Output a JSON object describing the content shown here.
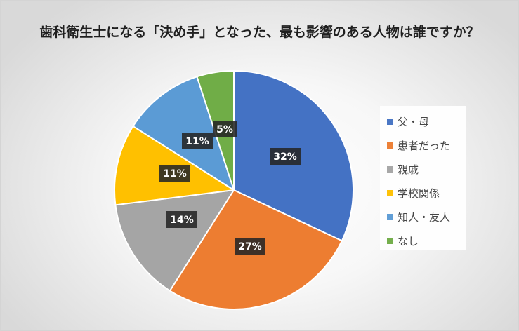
{
  "chart_data": {
    "type": "pie",
    "title": "歯科衛生士になる「決め手」となった、最も影響のある人物は誰ですか？",
    "categories": [
      "父・母",
      "患者だった",
      "親戚",
      "学校関係",
      "知人・友人",
      "なし"
    ],
    "values": [
      32,
      27,
      14,
      11,
      11,
      5
    ],
    "labels": [
      "32%",
      "27%",
      "14%",
      "11%",
      "11%",
      "5%"
    ],
    "colors": [
      "#4472C4",
      "#ED7D31",
      "#A5A5A5",
      "#FFC000",
      "#5B9BD5",
      "#70AD47"
    ],
    "legend_position": "right"
  }
}
